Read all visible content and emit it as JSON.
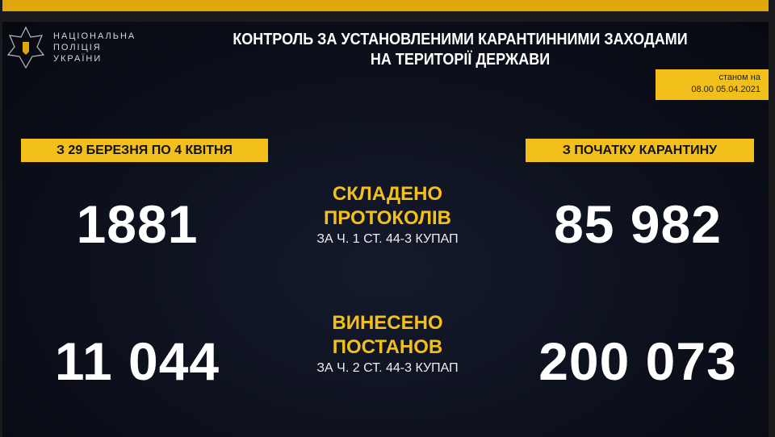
{
  "org": {
    "line1": "НАЦІОНАЛЬНА",
    "line2": "ПОЛІЦІЯ",
    "line3": "УКРАЇНИ"
  },
  "title": {
    "line1": "КОНТРОЛЬ ЗА УСТАНОВЛЕНИМИ КАРАНТИННИМИ ЗАХОДАМИ",
    "line2": "НА ТЕРИТОРІЇ ДЕРЖАВИ"
  },
  "as_of": {
    "label": "станом на",
    "value": "08.00 05.04.2021"
  },
  "columns": {
    "left": "З 29 БЕРЕЗНЯ ПО 4 КВІТНЯ",
    "right": "З ПОЧАТКУ  КАРАНТИНУ"
  },
  "rows": [
    {
      "heading1": "СКЛАДЕНО",
      "heading2": "ПРОТОКОЛІВ",
      "sub": "ЗА Ч. 1 СТ. 44-3 КУПАП",
      "left": "1881",
      "right": "85 982"
    },
    {
      "heading1": "ВИНЕСЕНО",
      "heading2": "ПОСТАНОВ",
      "sub": "ЗА Ч. 2 СТ. 44-3 КУПАП",
      "left": "11 044",
      "right": "200 073"
    }
  ],
  "colors": {
    "accent": "#f3c01b",
    "background": "#0b0e18"
  }
}
